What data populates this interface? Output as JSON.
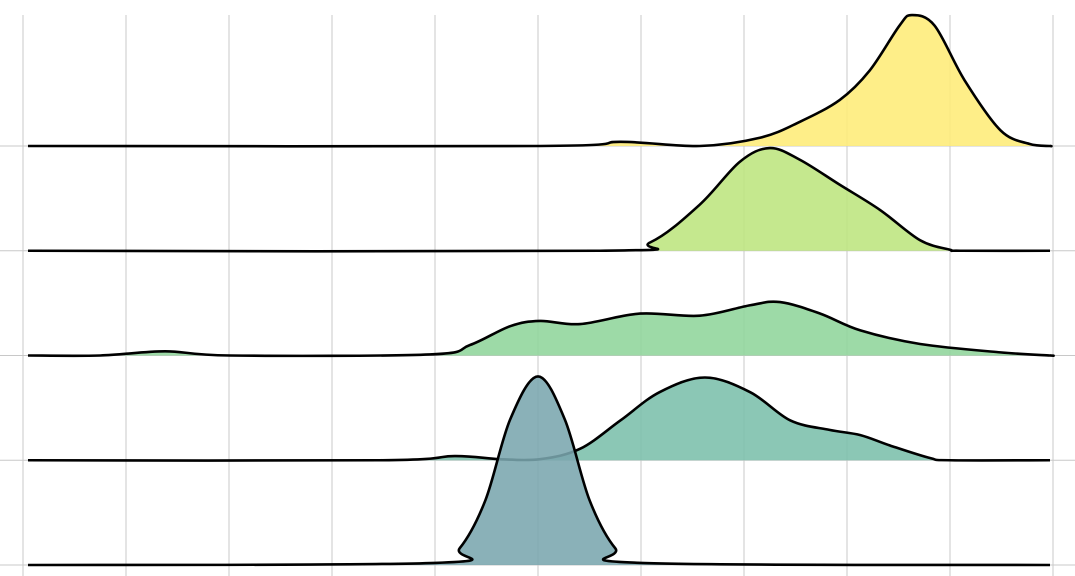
{
  "chart_data": {
    "type": "ridgeline",
    "title": "",
    "xlabel": "",
    "ylabel": "",
    "xlim": [
      0,
      10
    ],
    "grid": true,
    "legend": "none",
    "series": [
      {
        "color": "#fde725",
        "fill": "#feec78",
        "points": [
          [
            0,
            0
          ],
          [
            5.02,
            0
          ],
          [
            5.8,
            0.04
          ],
          [
            6.57,
            0
          ],
          [
            7.16,
            0.08
          ],
          [
            7.54,
            0.23
          ],
          [
            7.93,
            0.44
          ],
          [
            8.22,
            0.72
          ],
          [
            8.51,
            1.15
          ],
          [
            8.63,
            1.25
          ],
          [
            8.85,
            1.15
          ],
          [
            9.14,
            0.63
          ],
          [
            9.49,
            0.15
          ],
          [
            9.77,
            0.02
          ],
          [
            9.97,
            0
          ],
          [
            10,
            0
          ]
        ]
      },
      {
        "color": "#a0da39",
        "fill": "#bde57e",
        "points": [
          [
            0,
            0
          ],
          [
            5.6,
            0
          ],
          [
            6.09,
            0.08
          ],
          [
            6.57,
            0.44
          ],
          [
            6.96,
            0.85
          ],
          [
            7.25,
            0.98
          ],
          [
            7.54,
            0.87
          ],
          [
            7.93,
            0.63
          ],
          [
            8.32,
            0.39
          ],
          [
            8.71,
            0.1
          ],
          [
            9.0,
            0.01
          ],
          [
            9.1,
            0
          ],
          [
            10,
            0
          ]
        ]
      },
      {
        "color": "#4ac16d",
        "fill": "#8fd59b",
        "points": [
          [
            0,
            0
          ],
          [
            0.75,
            0
          ],
          [
            1.38,
            0.04
          ],
          [
            2.01,
            0
          ],
          [
            3.95,
            0.01
          ],
          [
            4.34,
            0.1
          ],
          [
            4.73,
            0.28
          ],
          [
            5.02,
            0.33
          ],
          [
            5.41,
            0.3
          ],
          [
            5.99,
            0.4
          ],
          [
            6.57,
            0.38
          ],
          [
            7.06,
            0.48
          ],
          [
            7.35,
            0.51
          ],
          [
            7.74,
            0.4
          ],
          [
            8.13,
            0.24
          ],
          [
            8.71,
            0.11
          ],
          [
            9.49,
            0.03
          ],
          [
            9.97,
            0
          ],
          [
            10,
            0
          ]
        ]
      },
      {
        "color": "#1fa187",
        "fill": "#7bbfab",
        "points": [
          [
            0,
            0
          ],
          [
            3.47,
            0
          ],
          [
            4.19,
            0.04
          ],
          [
            4.63,
            0.01
          ],
          [
            5.02,
            0.01
          ],
          [
            5.41,
            0.11
          ],
          [
            5.8,
            0.38
          ],
          [
            6.18,
            0.65
          ],
          [
            6.62,
            0.79
          ],
          [
            7.06,
            0.65
          ],
          [
            7.45,
            0.38
          ],
          [
            7.83,
            0.29
          ],
          [
            8.13,
            0.24
          ],
          [
            8.42,
            0.14
          ],
          [
            8.81,
            0.02
          ],
          [
            9.0,
            0
          ],
          [
            10,
            0
          ]
        ]
      },
      {
        "color": "#31688e",
        "fill": "#7aa6ae",
        "points": [
          [
            0,
            0
          ],
          [
            4.0,
            0.02
          ],
          [
            4.24,
            0.16
          ],
          [
            4.49,
            0.62
          ],
          [
            4.73,
            1.39
          ],
          [
            5.0,
            1.8
          ],
          [
            5.26,
            1.39
          ],
          [
            5.5,
            0.62
          ],
          [
            5.75,
            0.16
          ],
          [
            6.0,
            0.02
          ],
          [
            10,
            0
          ]
        ]
      }
    ]
  }
}
